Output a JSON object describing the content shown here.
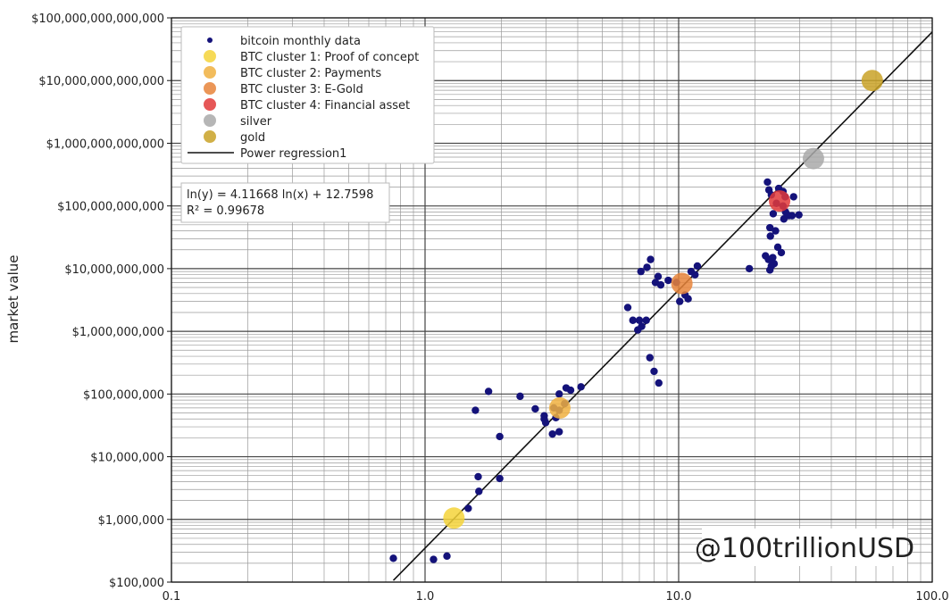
{
  "chart_data": {
    "type": "scatter",
    "title": "",
    "xlabel": "",
    "ylabel": "market value",
    "xscale": "log",
    "yscale": "log",
    "xlim": [
      0.1,
      100.0
    ],
    "ylim": [
      100000,
      100000000000000
    ],
    "grid": "major and minor on both axes",
    "x_ticks": [
      "0.1",
      "1.0",
      "10.0",
      "100.0"
    ],
    "y_ticks": [
      {
        "value": 100000,
        "label": "$100,000"
      },
      {
        "value": 1000000,
        "label": "$1,000,000"
      },
      {
        "value": 10000000,
        "label": "$10,000,000"
      },
      {
        "value": 100000000,
        "label": "$100,000,000"
      },
      {
        "value": 1000000000,
        "label": "$1,000,000,000"
      },
      {
        "value": 10000000000,
        "label": "$10,000,000,000"
      },
      {
        "value": 100000000000,
        "label": "$100,000,000,000"
      },
      {
        "value": 1000000000000,
        "label": "$1,000,000,000,000"
      },
      {
        "value": 10000000000000,
        "label": "$10,000,000,000,000"
      },
      {
        "value": 100000000000000,
        "label": "$100,000,000,000,000"
      }
    ],
    "legend_position": "top-left",
    "legend": [
      {
        "label": "bitcoin monthly data",
        "kind": "dot",
        "color": "#14127a"
      },
      {
        "label": "BTC cluster 1: Proof of concept",
        "kind": "circle",
        "color": "#f5d33a"
      },
      {
        "label": "BTC cluster 2: Payments",
        "kind": "circle",
        "color": "#f0b040"
      },
      {
        "label": "BTC cluster 3: E-Gold",
        "kind": "circle",
        "color": "#e8843a"
      },
      {
        "label": "BTC cluster 4: Financial asset",
        "kind": "circle",
        "color": "#e23a3a"
      },
      {
        "label": "silver",
        "kind": "circle",
        "color": "#a9a9a9"
      },
      {
        "label": "gold",
        "kind": "circle",
        "color": "#c9a227"
      },
      {
        "label": "Power regression1",
        "kind": "line",
        "color": "#111111"
      }
    ],
    "regression": {
      "equation": "ln(y) = 4.11668 ln(x) + 12.7598",
      "r_squared": "R² = 0.99678",
      "x_range": [
        0.75,
        100.0
      ]
    },
    "series": [
      {
        "name": "bitcoin monthly data",
        "color": "#14127a",
        "points": [
          [
            0.75,
            240000
          ],
          [
            1.08,
            230000
          ],
          [
            1.22,
            260000
          ],
          [
            1.48,
            1500000
          ],
          [
            1.63,
            2800000
          ],
          [
            1.62,
            4800000
          ],
          [
            1.97,
            4500000
          ],
          [
            1.58,
            55000000
          ],
          [
            1.78,
            110000000
          ],
          [
            1.97,
            21000000
          ],
          [
            2.37,
            92000000
          ],
          [
            2.72,
            58000000
          ],
          [
            2.95,
            45000000
          ],
          [
            2.95,
            40000000
          ],
          [
            2.99,
            35000000
          ],
          [
            3.18,
            23000000
          ],
          [
            3.38,
            25000000
          ],
          [
            3.28,
            42000000
          ],
          [
            3.38,
            55000000
          ],
          [
            3.38,
            100000000
          ],
          [
            3.6,
            125000000
          ],
          [
            3.75,
            115000000
          ],
          [
            4.12,
            130000000
          ],
          [
            3.22,
            60000000
          ],
          [
            3.55,
            70000000
          ],
          [
            6.3,
            2400000000
          ],
          [
            6.6,
            1500000000
          ],
          [
            6.9,
            1050000000
          ],
          [
            7.0,
            1500000000
          ],
          [
            7.15,
            1200000000
          ],
          [
            7.45,
            1500000000
          ],
          [
            7.1,
            9000000000
          ],
          [
            7.5,
            10500000000
          ],
          [
            7.75,
            14000000000
          ],
          [
            8.1,
            6000000000
          ],
          [
            8.3,
            7500000000
          ],
          [
            8.5,
            5500000000
          ],
          [
            9.1,
            6500000000
          ],
          [
            9.8,
            6000000000
          ],
          [
            10.1,
            3000000000
          ],
          [
            10.6,
            3800000000
          ],
          [
            10.9,
            3300000000
          ],
          [
            11.2,
            9000000000
          ],
          [
            11.6,
            8000000000
          ],
          [
            11.85,
            11000000000
          ],
          [
            7.7,
            380000000
          ],
          [
            8.0,
            230000000
          ],
          [
            8.35,
            150000000
          ],
          [
            19.0,
            10000000000
          ],
          [
            22.0,
            16000000000
          ],
          [
            22.6,
            14000000000
          ],
          [
            23.5,
            15000000000
          ],
          [
            23.8,
            12000000000
          ],
          [
            24.6,
            22000000000
          ],
          [
            25.4,
            18000000000
          ],
          [
            22.9,
            9500000000
          ],
          [
            23.2,
            11000000000
          ],
          [
            22.4,
            240000000000
          ],
          [
            22.7,
            180000000000
          ],
          [
            23.2,
            150000000000
          ],
          [
            24.3,
            110000000000
          ],
          [
            24.8,
            190000000000
          ],
          [
            25.8,
            170000000000
          ],
          [
            26.3,
            140000000000
          ],
          [
            25.8,
            100000000000
          ],
          [
            26.4,
            80000000000
          ],
          [
            27.2,
            70000000000
          ],
          [
            28.4,
            140000000000
          ],
          [
            28.0,
            70000000000
          ],
          [
            29.8,
            72000000000
          ],
          [
            23.6,
            75000000000
          ],
          [
            22.9,
            45000000000
          ],
          [
            24.1,
            40000000000
          ],
          [
            23.0,
            33000000000
          ],
          [
            26.0,
            62000000000
          ]
        ]
      },
      {
        "name": "BTC cluster 1: Proof of concept",
        "color": "#f5d33a",
        "points": [
          [
            1.3,
            1050000
          ]
        ]
      },
      {
        "name": "BTC cluster 2: Payments",
        "color": "#f0b040",
        "points": [
          [
            3.4,
            60000000
          ]
        ]
      },
      {
        "name": "BTC cluster 3: E-Gold",
        "color": "#e8843a",
        "points": [
          [
            10.3,
            5800000000
          ]
        ]
      },
      {
        "name": "BTC cluster 4: Financial asset",
        "color": "#e23a3a",
        "points": [
          [
            25.0,
            120000000000
          ]
        ]
      },
      {
        "name": "silver",
        "color": "#a9a9a9",
        "points": [
          [
            34.0,
            570000000000
          ]
        ]
      },
      {
        "name": "gold",
        "color": "#c9a227",
        "points": [
          [
            58.0,
            10000000000000
          ]
        ]
      }
    ],
    "watermark": "@100trillionUSD"
  }
}
